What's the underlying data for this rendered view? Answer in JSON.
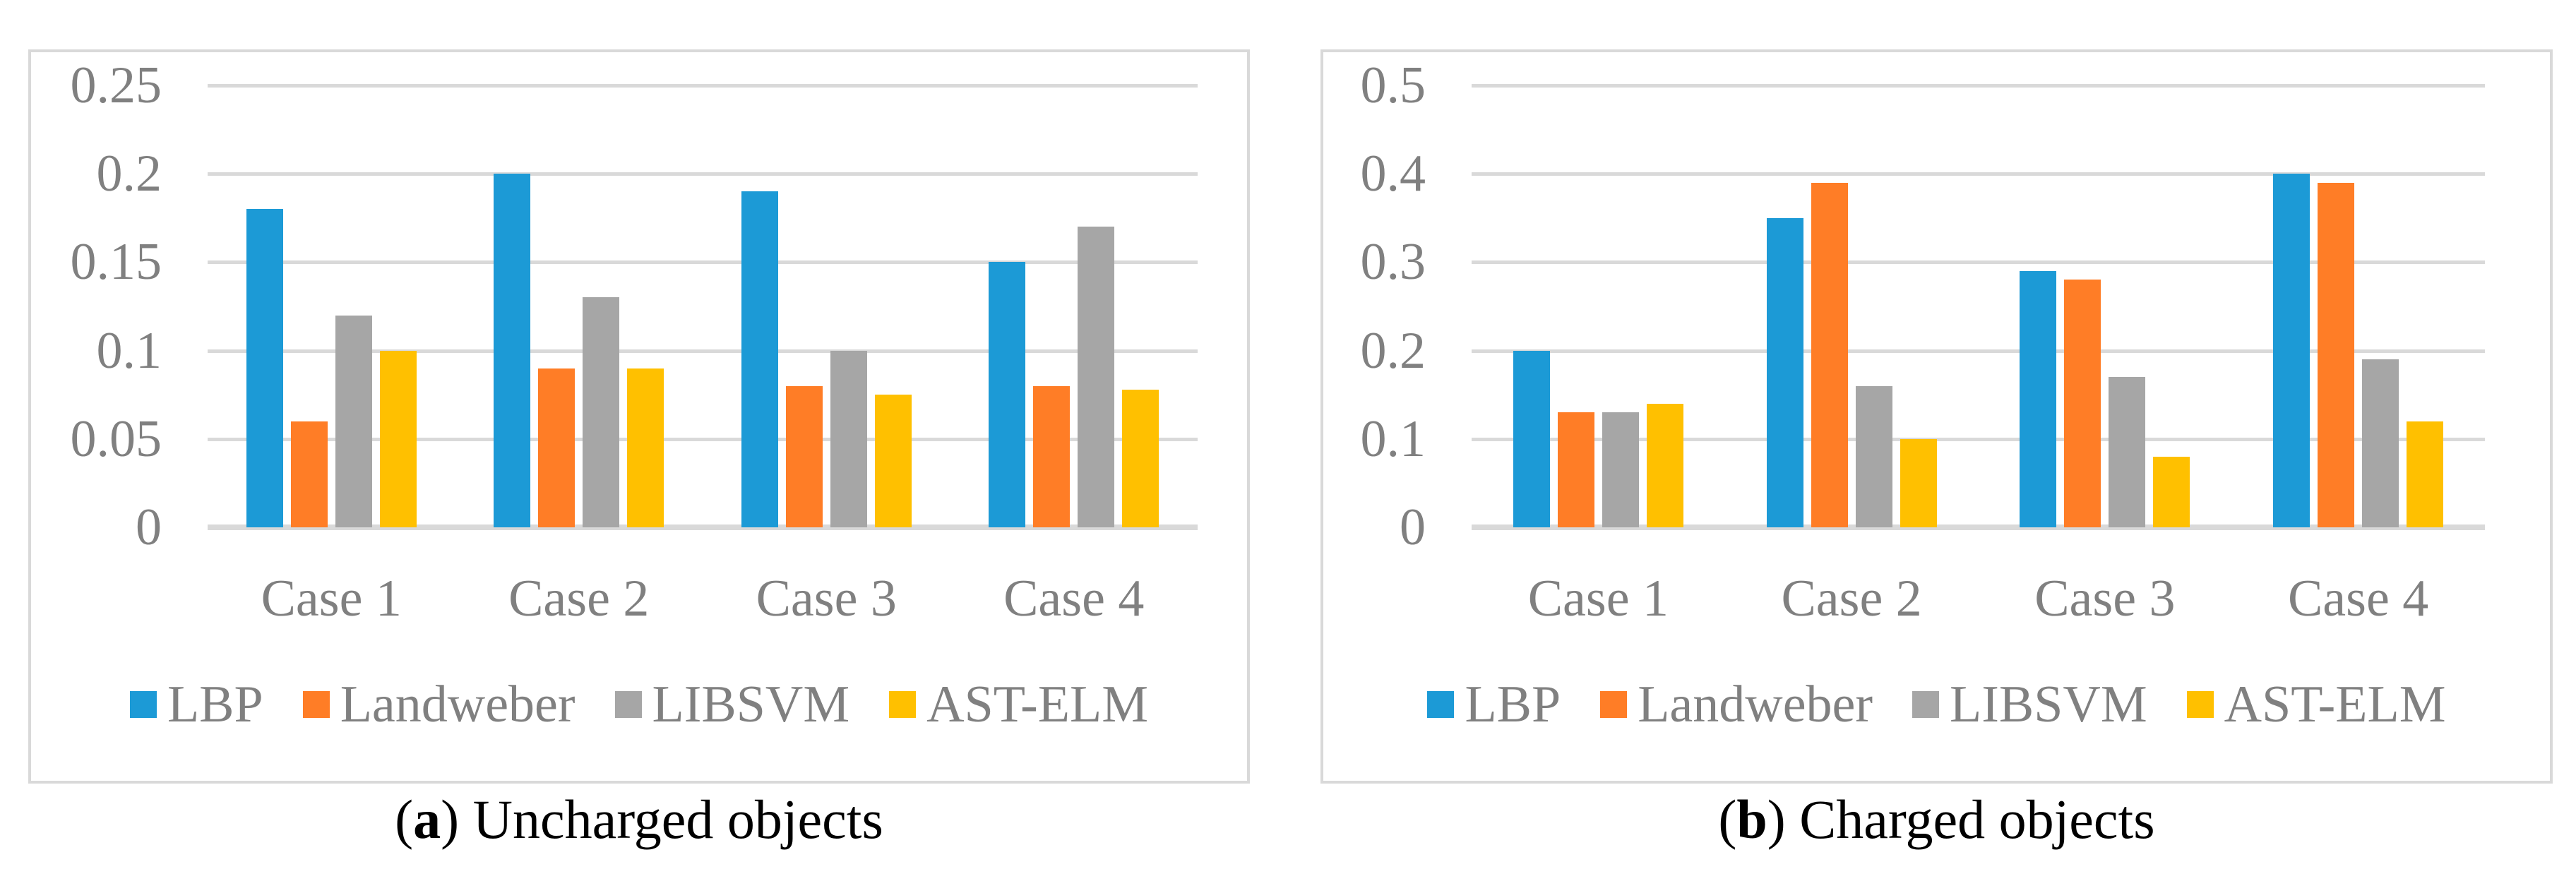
{
  "colors": {
    "lbp": "#1C9AD6",
    "landweber": "#FF7D26",
    "libsvm": "#A6A6A6",
    "astelm": "#FFC000",
    "gridline": "#D9D9D9",
    "panel_border": "#D9D9D9",
    "axis_text": "#808080",
    "caption_text": "#000000",
    "background": "#FFFFFF"
  },
  "chart_data": [
    {
      "id": "a",
      "type": "bar",
      "title": "",
      "xlabel": "",
      "ylabel": "",
      "grid": true,
      "legend_position": "bottom",
      "ylim": [
        0,
        0.25
      ],
      "ytick_step": 0.05,
      "ytick_labels": [
        "0",
        "0.05",
        "0.1",
        "0.15",
        "0.2",
        "0.25"
      ],
      "categories": [
        "Case 1",
        "Case 2",
        "Case 3",
        "Case 4"
      ],
      "series": [
        {
          "name": "LBP",
          "color_key": "lbp",
          "values": [
            0.18,
            0.2,
            0.19,
            0.15
          ]
        },
        {
          "name": "Landweber",
          "color_key": "landweber",
          "values": [
            0.06,
            0.09,
            0.08,
            0.08
          ]
        },
        {
          "name": "LIBSVM",
          "color_key": "libsvm",
          "values": [
            0.12,
            0.13,
            0.1,
            0.17
          ]
        },
        {
          "name": "AST-ELM",
          "color_key": "astelm",
          "values": [
            0.1,
            0.09,
            0.075,
            0.078
          ]
        }
      ],
      "caption": {
        "prefix": "(",
        "label": "a",
        "suffix": ") ",
        "text": "Uncharged objects"
      }
    },
    {
      "id": "b",
      "type": "bar",
      "title": "",
      "xlabel": "",
      "ylabel": "",
      "grid": true,
      "legend_position": "bottom",
      "ylim": [
        0,
        0.5
      ],
      "ytick_step": 0.1,
      "ytick_labels": [
        "0",
        "0.1",
        "0.2",
        "0.3",
        "0.4",
        "0.5"
      ],
      "categories": [
        "Case 1",
        "Case 2",
        "Case 3",
        "Case 4"
      ],
      "series": [
        {
          "name": "LBP",
          "color_key": "lbp",
          "values": [
            0.2,
            0.35,
            0.29,
            0.4
          ]
        },
        {
          "name": "Landweber",
          "color_key": "landweber",
          "values": [
            0.13,
            0.39,
            0.28,
            0.39
          ]
        },
        {
          "name": "LIBSVM",
          "color_key": "libsvm",
          "values": [
            0.13,
            0.16,
            0.17,
            0.19
          ]
        },
        {
          "name": "AST-ELM",
          "color_key": "astelm",
          "values": [
            0.14,
            0.1,
            0.08,
            0.12
          ]
        }
      ],
      "caption": {
        "prefix": "(",
        "label": "b",
        "suffix": ") ",
        "text": "Charged objects"
      }
    }
  ]
}
